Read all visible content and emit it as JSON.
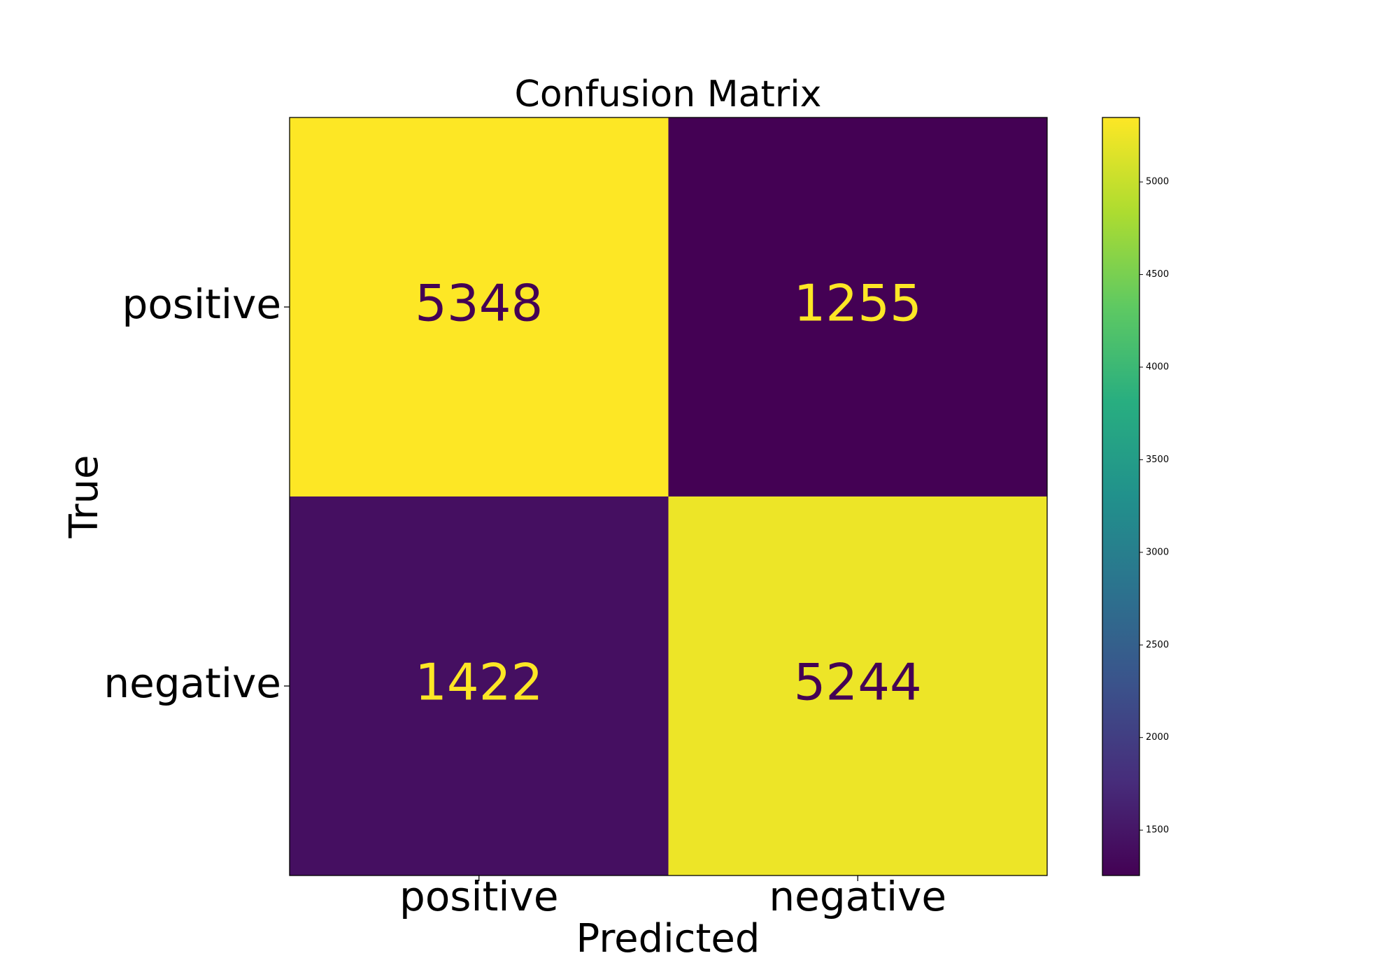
{
  "chart_data": {
    "type": "heatmap",
    "title": "Confusion Matrix",
    "x_label": "Predicted",
    "y_label": "True",
    "columns": [
      "positive",
      "negative"
    ],
    "rows": [
      "positive",
      "negative"
    ],
    "values": [
      [
        5348,
        1255
      ],
      [
        1422,
        5244
      ]
    ],
    "colormap": "viridis",
    "clim": [
      1255,
      5348
    ],
    "colorbar_ticks": [
      1500,
      2000,
      2500,
      3000,
      3500,
      4000,
      4500,
      5000
    ]
  }
}
